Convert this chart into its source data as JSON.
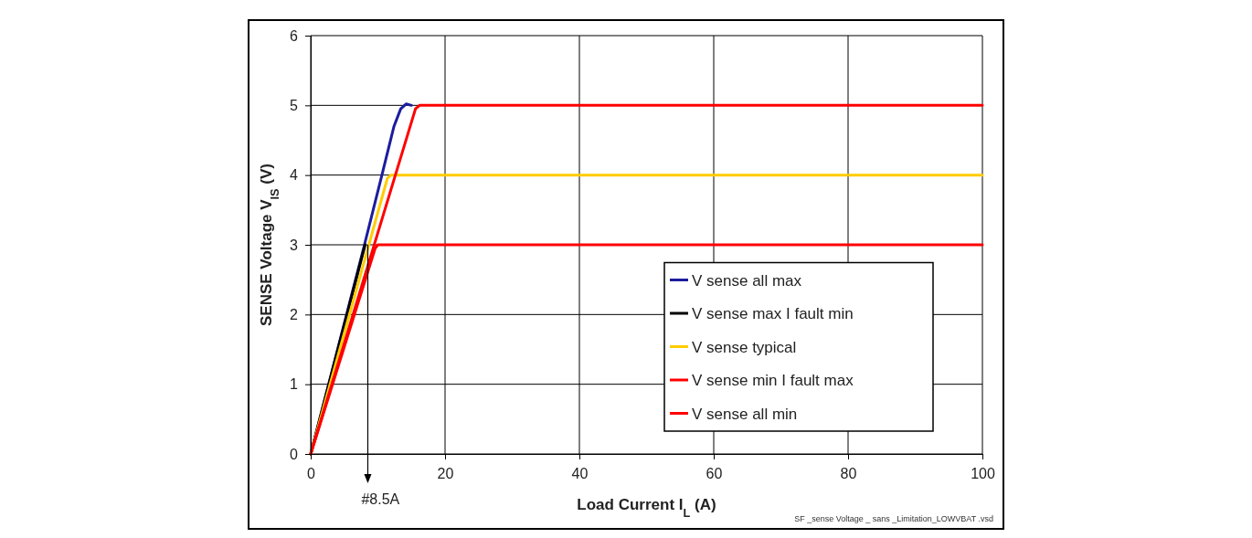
{
  "chart_data": {
    "type": "line",
    "xlabel": "Load Current I$_{L}$ (A)",
    "ylabel": "SENSE Voltage V$_{IS}$ (V)",
    "xlim": [
      0,
      100
    ],
    "xticks": [
      0,
      20,
      40,
      60,
      80,
      100
    ],
    "ylim": [
      0,
      6
    ],
    "yticks": [
      0,
      1,
      2,
      3,
      4,
      5,
      6
    ],
    "grid": true,
    "legend": "bottom right",
    "marker": "none",
    "line_style": "solid",
    "series": [
      {
        "name": "V sense all max",
        "color": "#1c1c9e",
        "x": [
          0,
          8,
          10.6,
          12.4,
          13.4,
          14.2,
          15
        ],
        "values": [
          0,
          3,
          4,
          4.7,
          4.95,
          5.02,
          5
        ]
      },
      {
        "name": "V sense max I fault min",
        "color": "#000000",
        "x": [
          0,
          8.1
        ],
        "values": [
          0,
          3
        ]
      },
      {
        "name": "V sense typical",
        "color": "#ffcc00",
        "x": [
          0,
          11.4,
          11.9,
          100
        ],
        "values": [
          0,
          3.95,
          4,
          4
        ]
      },
      {
        "name": "V sense min I fault max",
        "color": "#ff0000",
        "x": [
          0,
          9.6,
          10,
          100
        ],
        "values": [
          0,
          2.95,
          3,
          3
        ]
      },
      {
        "name": "V sense all min",
        "color": "#ff0000",
        "x": [
          0,
          15.6,
          16.2,
          100
        ],
        "values": [
          0,
          4.95,
          5,
          5
        ]
      }
    ],
    "annotations": [
      {
        "text": "#8.5A",
        "x": 8.5,
        "y": 3
      },
      "SF _sense Voltage _ sans _Limitation_LOWVBAT .vsd"
    ]
  }
}
